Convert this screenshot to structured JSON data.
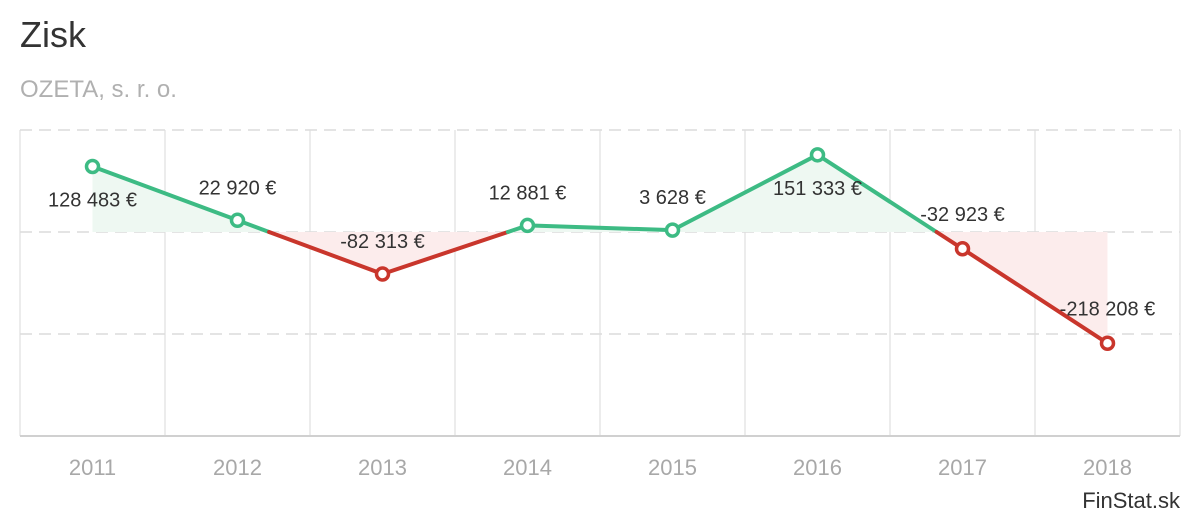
{
  "chart_data": {
    "type": "line",
    "title": "Zisk",
    "subtitle": "OZETA, s. r. o.",
    "credit": "FinStat.sk",
    "categories": [
      "2011",
      "2012",
      "2013",
      "2014",
      "2015",
      "2016",
      "2017",
      "2018"
    ],
    "values": [
      128483,
      22920,
      -82313,
      12881,
      3628,
      151333,
      -32923,
      -218208
    ],
    "data_labels": [
      "128 483 €",
      "22 920 €",
      "-82 313 €",
      "12 881 €",
      "3 628 €",
      "151 333 €",
      "-32 923 €",
      "-218 208 €"
    ],
    "ylim": [
      -400000,
      200000
    ],
    "xlabel": "",
    "ylabel": "",
    "grid": true,
    "colors": {
      "positive": "#3dbb84",
      "negative": "#c9362c",
      "positive_fill": "#eef8f2",
      "negative_fill": "#fcecec"
    }
  }
}
